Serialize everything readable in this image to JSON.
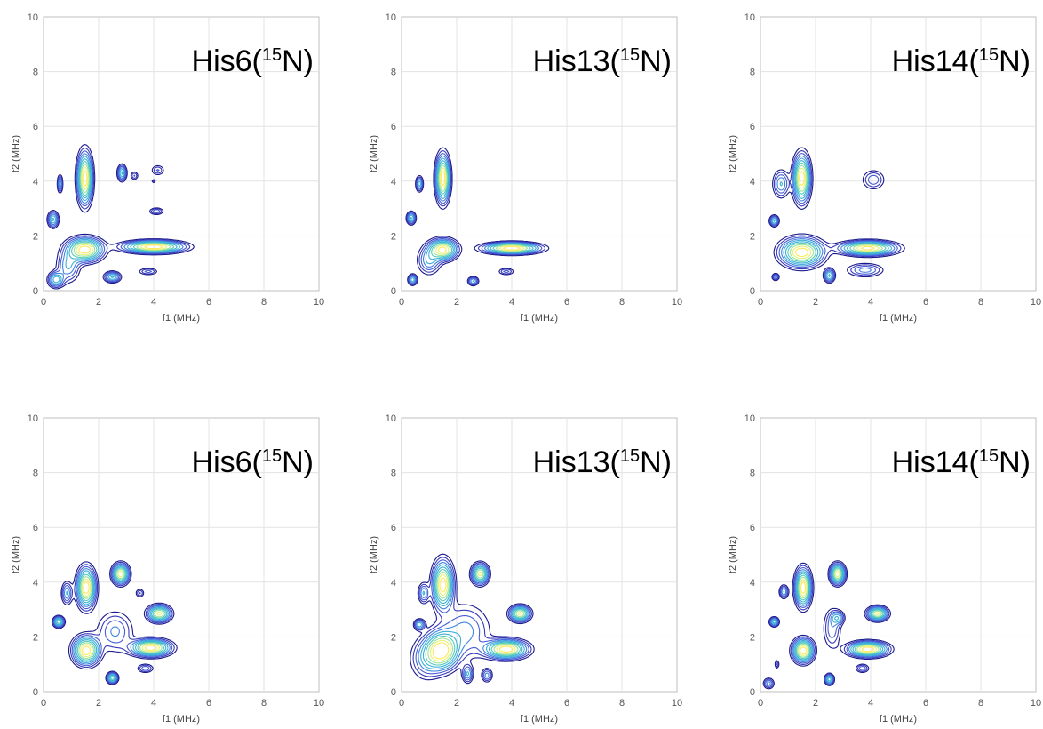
{
  "chart_data": {
    "type": "contour",
    "xlabel": "f1 (MHz)",
    "ylabel": "f2 (MHz)",
    "xlim": [
      0,
      10
    ],
    "ylim": [
      0,
      10
    ],
    "xticks": [
      0,
      2,
      4,
      6,
      8,
      10
    ],
    "yticks": [
      0,
      2,
      4,
      6,
      8,
      10
    ],
    "grid": true,
    "colormap": [
      "#1a1a8c",
      "#3a3ab8",
      "#4a5ed6",
      "#3f86e0",
      "#3fb0d8",
      "#55cfb8",
      "#9fe39a",
      "#e6f27a",
      "#ffe85a"
    ],
    "panels": [
      {
        "row": "top",
        "title": {
          "name": "His6(",
          "isotope": "15",
          "element": "N)"
        },
        "peaks": [
          {
            "x": 1.5,
            "y": 4.1,
            "sx": 0.16,
            "sy": 0.55,
            "amp": 1.0
          },
          {
            "x": 1.5,
            "y": 1.5,
            "sx": 0.38,
            "sy": 0.25,
            "amp": 1.0
          },
          {
            "x": 4.0,
            "y": 1.6,
            "sx": 0.65,
            "sy": 0.13,
            "amp": 1.0
          },
          {
            "x": 0.6,
            "y": 3.9,
            "sx": 0.06,
            "sy": 0.2,
            "amp": 0.35
          },
          {
            "x": 0.35,
            "y": 2.6,
            "sx": 0.12,
            "sy": 0.18,
            "amp": 0.45
          },
          {
            "x": 2.85,
            "y": 4.3,
            "sx": 0.1,
            "sy": 0.18,
            "amp": 0.45
          },
          {
            "x": 3.3,
            "y": 4.2,
            "sx": 0.09,
            "sy": 0.1,
            "amp": 0.2
          },
          {
            "x": 4.15,
            "y": 4.4,
            "sx": 0.15,
            "sy": 0.12,
            "amp": 0.2
          },
          {
            "x": 4.1,
            "y": 2.9,
            "sx": 0.16,
            "sy": 0.08,
            "amp": 0.25
          },
          {
            "x": 4.0,
            "y": 4.0,
            "sx": 0.05,
            "sy": 0.05,
            "amp": 0.15
          },
          {
            "x": 0.45,
            "y": 0.4,
            "sx": 0.17,
            "sy": 0.17,
            "amp": 0.5
          },
          {
            "x": 0.9,
            "y": 0.9,
            "sx": 0.25,
            "sy": 0.35,
            "amp": 0.35
          },
          {
            "x": 2.5,
            "y": 0.5,
            "sx": 0.18,
            "sy": 0.12,
            "amp": 0.45
          },
          {
            "x": 3.8,
            "y": 0.7,
            "sx": 0.22,
            "sy": 0.08,
            "amp": 0.22
          }
        ]
      },
      {
        "row": "top",
        "title": {
          "name": "His13(",
          "isotope": "15",
          "element": "N)"
        },
        "peaks": [
          {
            "x": 1.5,
            "y": 4.1,
            "sx": 0.15,
            "sy": 0.5,
            "amp": 1.0
          },
          {
            "x": 1.5,
            "y": 1.5,
            "sx": 0.3,
            "sy": 0.22,
            "amp": 0.95
          },
          {
            "x": 4.0,
            "y": 1.55,
            "sx": 0.6,
            "sy": 0.12,
            "amp": 1.0
          },
          {
            "x": 0.65,
            "y": 3.9,
            "sx": 0.08,
            "sy": 0.17,
            "amp": 0.4
          },
          {
            "x": 0.35,
            "y": 2.65,
            "sx": 0.1,
            "sy": 0.14,
            "amp": 0.45
          },
          {
            "x": 0.4,
            "y": 0.4,
            "sx": 0.1,
            "sy": 0.12,
            "amp": 0.4
          },
          {
            "x": 1.0,
            "y": 1.1,
            "sx": 0.25,
            "sy": 0.3,
            "amp": 0.35
          },
          {
            "x": 2.6,
            "y": 0.35,
            "sx": 0.12,
            "sy": 0.1,
            "amp": 0.35
          },
          {
            "x": 3.8,
            "y": 0.7,
            "sx": 0.18,
            "sy": 0.08,
            "amp": 0.22
          }
        ]
      },
      {
        "row": "top",
        "title": {
          "name": "His14(",
          "isotope": "15",
          "element": "N)"
        },
        "peaks": [
          {
            "x": 1.5,
            "y": 4.1,
            "sx": 0.18,
            "sy": 0.5,
            "amp": 1.0
          },
          {
            "x": 1.5,
            "y": 1.4,
            "sx": 0.45,
            "sy": 0.3,
            "amp": 1.0
          },
          {
            "x": 3.9,
            "y": 1.55,
            "sx": 0.6,
            "sy": 0.15,
            "amp": 0.95
          },
          {
            "x": 0.75,
            "y": 3.9,
            "sx": 0.18,
            "sy": 0.3,
            "amp": 0.35
          },
          {
            "x": 0.5,
            "y": 2.55,
            "sx": 0.1,
            "sy": 0.12,
            "amp": 0.45
          },
          {
            "x": 2.5,
            "y": 0.55,
            "sx": 0.12,
            "sy": 0.15,
            "amp": 0.45
          },
          {
            "x": 3.8,
            "y": 0.75,
            "sx": 0.4,
            "sy": 0.15,
            "amp": 0.3
          },
          {
            "x": 4.1,
            "y": 4.05,
            "sx": 0.25,
            "sy": 0.22,
            "amp": 0.25
          },
          {
            "x": 0.55,
            "y": 0.5,
            "sx": 0.08,
            "sy": 0.08,
            "amp": 0.3
          }
        ]
      },
      {
        "row": "bottom",
        "title": {
          "name": "His6(",
          "isotope": "15",
          "element": "N)"
        },
        "peaks": [
          {
            "x": 1.55,
            "y": 3.8,
            "sx": 0.2,
            "sy": 0.42,
            "amp": 1.0
          },
          {
            "x": 1.55,
            "y": 1.5,
            "sx": 0.28,
            "sy": 0.3,
            "amp": 1.0
          },
          {
            "x": 2.8,
            "y": 4.3,
            "sx": 0.18,
            "sy": 0.22,
            "amp": 0.85
          },
          {
            "x": 4.2,
            "y": 2.85,
            "sx": 0.25,
            "sy": 0.18,
            "amp": 0.8
          },
          {
            "x": 3.9,
            "y": 1.6,
            "sx": 0.42,
            "sy": 0.18,
            "amp": 1.0
          },
          {
            "x": 0.55,
            "y": 2.55,
            "sx": 0.12,
            "sy": 0.12,
            "amp": 0.6
          },
          {
            "x": 0.85,
            "y": 3.6,
            "sx": 0.12,
            "sy": 0.25,
            "amp": 0.35
          },
          {
            "x": 2.5,
            "y": 0.5,
            "sx": 0.12,
            "sy": 0.12,
            "amp": 0.6
          },
          {
            "x": 3.7,
            "y": 0.85,
            "sx": 0.18,
            "sy": 0.1,
            "amp": 0.25
          },
          {
            "x": 2.6,
            "y": 2.2,
            "sx": 0.4,
            "sy": 0.45,
            "amp": 0.28
          },
          {
            "x": 3.5,
            "y": 3.6,
            "sx": 0.1,
            "sy": 0.1,
            "amp": 0.2
          }
        ]
      },
      {
        "row": "bottom",
        "title": {
          "name": "His13(",
          "isotope": "15",
          "element": "N)"
        },
        "peaks": [
          {
            "x": 1.5,
            "y": 3.9,
            "sx": 0.22,
            "sy": 0.5,
            "amp": 1.0
          },
          {
            "x": 1.45,
            "y": 1.5,
            "sx": 0.35,
            "sy": 0.4,
            "amp": 1.0
          },
          {
            "x": 2.85,
            "y": 4.3,
            "sx": 0.18,
            "sy": 0.22,
            "amp": 0.8
          },
          {
            "x": 4.3,
            "y": 2.85,
            "sx": 0.22,
            "sy": 0.17,
            "amp": 0.8
          },
          {
            "x": 3.8,
            "y": 1.55,
            "sx": 0.45,
            "sy": 0.2,
            "amp": 1.0
          },
          {
            "x": 0.65,
            "y": 2.45,
            "sx": 0.12,
            "sy": 0.12,
            "amp": 0.4
          },
          {
            "x": 0.8,
            "y": 3.6,
            "sx": 0.12,
            "sy": 0.22,
            "amp": 0.35
          },
          {
            "x": 2.4,
            "y": 0.65,
            "sx": 0.12,
            "sy": 0.2,
            "amp": 0.35
          },
          {
            "x": 2.3,
            "y": 2.2,
            "sx": 0.55,
            "sy": 0.6,
            "amp": 0.3
          },
          {
            "x": 0.9,
            "y": 1.2,
            "sx": 0.35,
            "sy": 0.45,
            "amp": 0.3
          },
          {
            "x": 3.1,
            "y": 0.6,
            "sx": 0.12,
            "sy": 0.15,
            "amp": 0.3
          }
        ]
      },
      {
        "row": "bottom",
        "title": {
          "name": "His14(",
          "isotope": "15",
          "element": "N)"
        },
        "peaks": [
          {
            "x": 1.55,
            "y": 3.8,
            "sx": 0.17,
            "sy": 0.4,
            "amp": 1.0
          },
          {
            "x": 1.55,
            "y": 1.5,
            "sx": 0.22,
            "sy": 0.25,
            "amp": 1.0
          },
          {
            "x": 2.8,
            "y": 4.3,
            "sx": 0.16,
            "sy": 0.22,
            "amp": 0.85
          },
          {
            "x": 4.25,
            "y": 2.85,
            "sx": 0.22,
            "sy": 0.15,
            "amp": 0.8
          },
          {
            "x": 3.9,
            "y": 1.55,
            "sx": 0.42,
            "sy": 0.16,
            "amp": 1.0
          },
          {
            "x": 0.5,
            "y": 2.55,
            "sx": 0.1,
            "sy": 0.1,
            "amp": 0.5
          },
          {
            "x": 0.85,
            "y": 3.65,
            "sx": 0.1,
            "sy": 0.15,
            "amp": 0.35
          },
          {
            "x": 2.5,
            "y": 0.45,
            "sx": 0.1,
            "sy": 0.12,
            "amp": 0.5
          },
          {
            "x": 3.7,
            "y": 0.85,
            "sx": 0.15,
            "sy": 0.1,
            "amp": 0.25
          },
          {
            "x": 2.6,
            "y": 2.3,
            "sx": 0.2,
            "sy": 0.45,
            "amp": 0.25
          },
          {
            "x": 2.8,
            "y": 2.7,
            "sx": 0.15,
            "sy": 0.15,
            "amp": 0.35
          },
          {
            "x": 0.3,
            "y": 0.3,
            "sx": 0.12,
            "sy": 0.12,
            "amp": 0.3
          },
          {
            "x": 0.6,
            "y": 1.0,
            "sx": 0.05,
            "sy": 0.1,
            "amp": 0.2
          }
        ]
      }
    ]
  }
}
